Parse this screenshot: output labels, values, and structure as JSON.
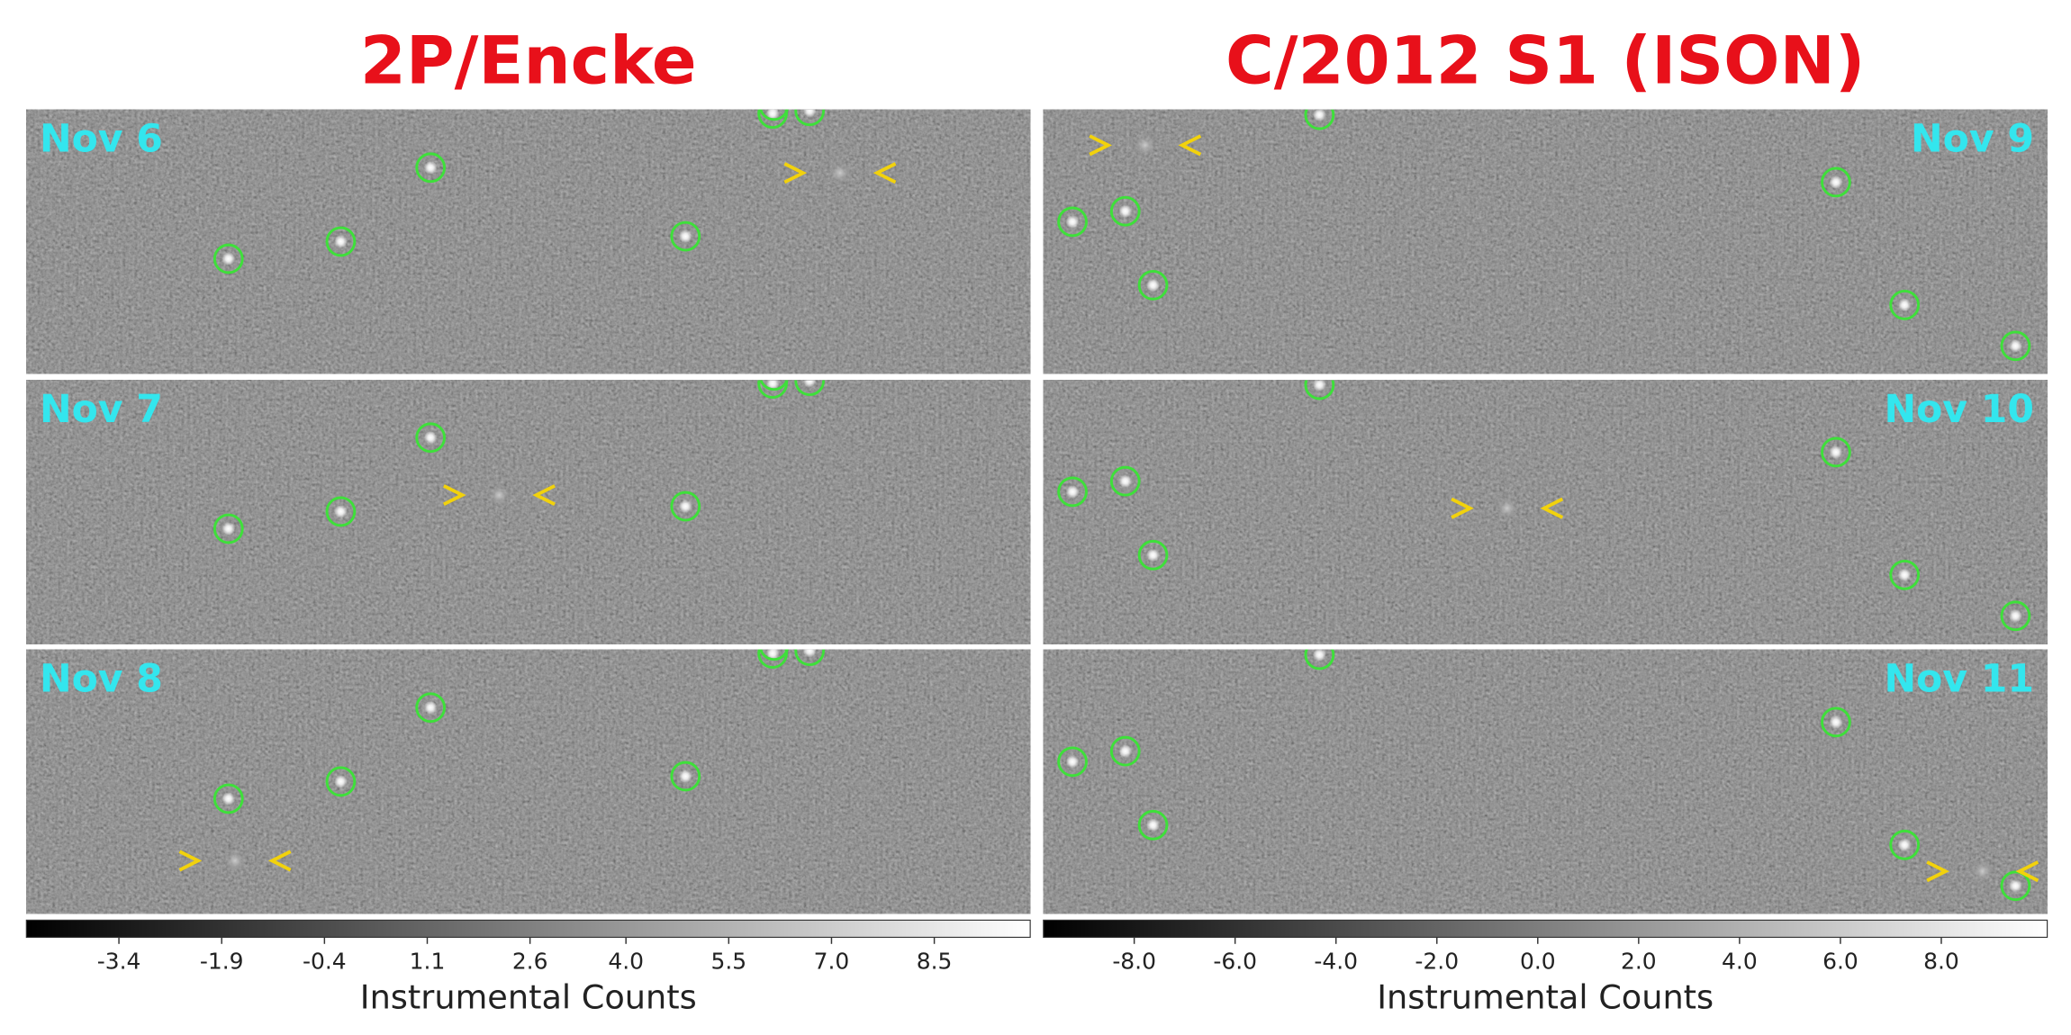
{
  "columns": [
    {
      "title": "2P/Encke",
      "panels": [
        "Nov 6",
        "Nov 7",
        "Nov 8"
      ],
      "colorbar": {
        "label": "Instrumental Counts",
        "lim": [
          -4.75,
          9.9
        ],
        "ticks": [
          -3.4,
          -1.9,
          -0.4,
          1.1,
          2.6,
          {
            "value": 4.0,
            "label": "4.0"
          },
          5.5,
          {
            "value": 7.0,
            "label": "7.0"
          },
          8.5
        ]
      }
    },
    {
      "title": "C/2012 S1 (ISON)",
      "panels": [
        "Nov 9",
        "Nov 10",
        "Nov 11"
      ],
      "colorbar": {
        "label": "Instrumental Counts",
        "lim": [
          -9.8,
          10.1
        ],
        "ticks": [
          {
            "value": -8.0,
            "label": "-8.0"
          },
          {
            "value": -6.0,
            "label": "-6.0"
          },
          {
            "value": -4.0,
            "label": "-4.0"
          },
          {
            "value": -2.0,
            "label": "-2.0"
          },
          {
            "value": 0.0,
            "label": "0.0"
          },
          {
            "value": 2.0,
            "label": "2.0"
          },
          {
            "value": 4.0,
            "label": "4.0"
          },
          {
            "value": 6.0,
            "label": "6.0"
          },
          {
            "value": 8.0,
            "label": "8.0"
          }
        ]
      }
    }
  ]
}
